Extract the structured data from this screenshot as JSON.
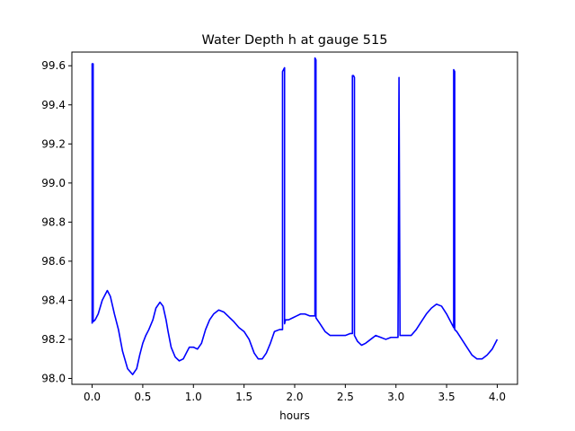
{
  "chart_data": {
    "type": "line",
    "title": "Water Depth h at gauge 515",
    "xlabel": "hours",
    "ylabel": "",
    "xlim": [
      -0.2,
      4.2
    ],
    "ylim": [
      97.97,
      99.67
    ],
    "xticks": [
      0.0,
      0.5,
      1.0,
      1.5,
      2.0,
      2.5,
      3.0,
      3.5,
      4.0
    ],
    "xtick_labels": [
      "0.0",
      "0.5",
      "1.0",
      "1.5",
      "2.0",
      "2.5",
      "3.0",
      "3.5",
      "4.0"
    ],
    "yticks": [
      98.0,
      98.2,
      98.4,
      98.6,
      98.8,
      99.0,
      99.2,
      99.4,
      99.6
    ],
    "ytick_labels": [
      "98.0",
      "98.2",
      "98.4",
      "98.6",
      "98.8",
      "99.0",
      "99.2",
      "99.4",
      "99.6"
    ],
    "grid": false,
    "line_color": "#0000ff",
    "series": [
      {
        "name": "",
        "x": [
          0.0,
          0.0,
          0.01,
          0.01,
          0.03,
          0.06,
          0.1,
          0.15,
          0.18,
          0.22,
          0.26,
          0.3,
          0.35,
          0.4,
          0.44,
          0.47,
          0.5,
          0.53,
          0.56,
          0.6,
          0.63,
          0.67,
          0.7,
          0.73,
          0.75,
          0.78,
          0.82,
          0.86,
          0.9,
          0.93,
          0.96,
          1.0,
          1.04,
          1.08,
          1.12,
          1.16,
          1.2,
          1.25,
          1.3,
          1.34,
          1.4,
          1.45,
          1.5,
          1.55,
          1.6,
          1.64,
          1.68,
          1.72,
          1.76,
          1.8,
          1.85,
          1.88,
          1.88,
          1.9,
          1.9,
          1.91,
          1.94,
          1.98,
          2.02,
          2.06,
          2.1,
          2.15,
          2.2,
          2.2,
          2.21,
          2.21,
          2.25,
          2.3,
          2.35,
          2.4,
          2.45,
          2.5,
          2.55,
          2.57,
          2.57,
          2.58,
          2.59,
          2.59,
          2.62,
          2.66,
          2.7,
          2.75,
          2.8,
          2.85,
          2.9,
          2.95,
          3.02,
          3.03,
          3.03,
          3.04,
          3.1,
          3.15,
          3.2,
          3.25,
          3.3,
          3.35,
          3.4,
          3.45,
          3.5,
          3.55,
          3.57,
          3.57,
          3.58,
          3.58,
          3.6,
          3.65,
          3.7,
          3.75,
          3.8,
          3.85,
          3.9,
          3.95,
          4.0
        ],
        "y": [
          98.28,
          99.61,
          99.61,
          98.29,
          98.3,
          98.33,
          98.4,
          98.45,
          98.42,
          98.33,
          98.25,
          98.14,
          98.05,
          98.02,
          98.05,
          98.12,
          98.18,
          98.22,
          98.25,
          98.3,
          98.36,
          98.39,
          98.37,
          98.3,
          98.24,
          98.16,
          98.11,
          98.09,
          98.1,
          98.13,
          98.16,
          98.16,
          98.15,
          98.18,
          98.25,
          98.3,
          98.33,
          98.35,
          98.34,
          98.32,
          98.29,
          98.26,
          98.24,
          98.2,
          98.13,
          98.1,
          98.1,
          98.13,
          98.18,
          98.24,
          98.25,
          98.25,
          99.57,
          99.59,
          98.28,
          98.3,
          98.3,
          98.31,
          98.32,
          98.33,
          98.33,
          98.32,
          98.32,
          99.64,
          99.63,
          98.31,
          98.28,
          98.24,
          98.22,
          98.22,
          98.22,
          98.22,
          98.23,
          98.23,
          99.55,
          99.55,
          99.54,
          98.22,
          98.19,
          98.17,
          98.18,
          98.2,
          98.22,
          98.21,
          98.2,
          98.21,
          98.21,
          99.54,
          99.54,
          98.22,
          98.22,
          98.22,
          98.25,
          98.29,
          98.33,
          98.36,
          98.38,
          98.37,
          98.33,
          98.28,
          98.26,
          99.58,
          99.57,
          98.25,
          98.24,
          98.2,
          98.16,
          98.12,
          98.1,
          98.1,
          98.12,
          98.15,
          98.2
        ]
      }
    ]
  }
}
